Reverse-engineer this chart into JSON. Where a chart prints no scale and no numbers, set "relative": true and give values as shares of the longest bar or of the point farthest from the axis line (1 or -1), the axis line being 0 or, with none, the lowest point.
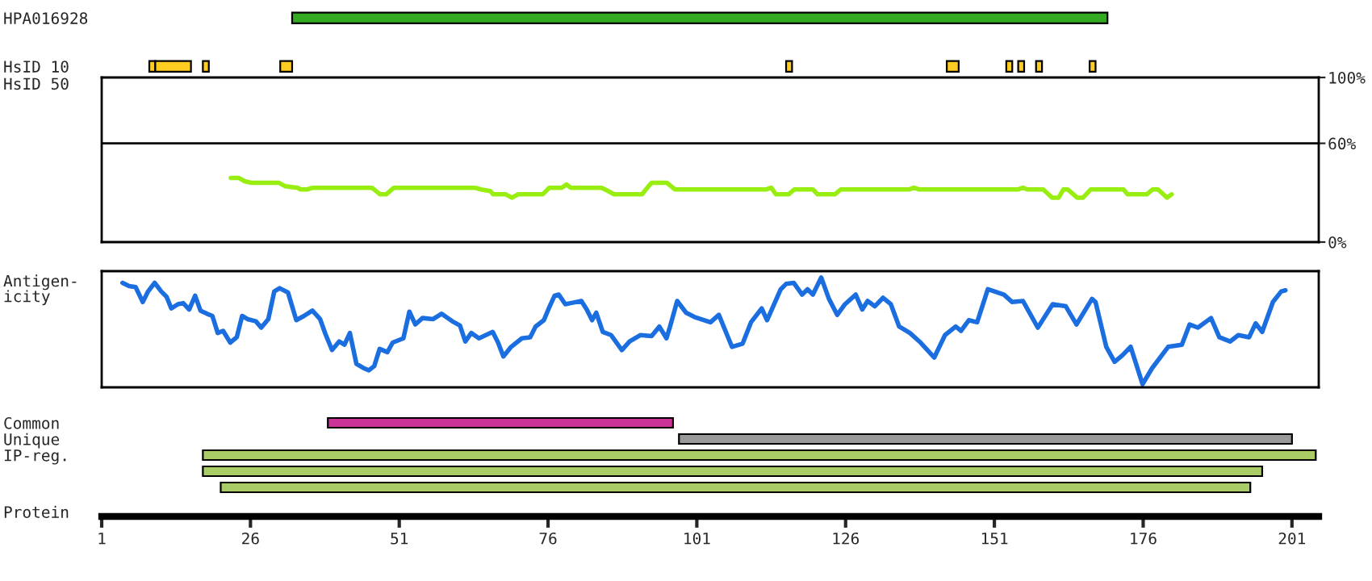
{
  "chart_data": [
    {
      "type": "bar",
      "orientation": "horizontal",
      "categories": [
        "HPA016928",
        "HsID 10"
      ],
      "xlim": [
        1,
        205.5
      ],
      "tick_labels": "y",
      "series": [
        {
          "color": "#33aa22",
          "values": [
            137,
            null
          ],
          "base": [
            33,
            null
          ]
        },
        {
          "color": "#ffcc22",
          "values": [
            null,
            1
          ],
          "base": [
            null,
            9
          ]
        },
        {
          "color": "#ffcc22",
          "values": [
            null,
            6
          ],
          "base": [
            null,
            10
          ]
        },
        {
          "color": "#ffcc22",
          "values": [
            null,
            1
          ],
          "base": [
            null,
            18
          ]
        },
        {
          "color": "#ffcc22",
          "values": [
            null,
            2
          ],
          "base": [
            null,
            31
          ]
        },
        {
          "color": "#ffcc22",
          "values": [
            null,
            1
          ],
          "base": [
            null,
            116
          ]
        },
        {
          "color": "#ffcc22",
          "values": [
            null,
            2
          ],
          "base": [
            null,
            143
          ]
        },
        {
          "color": "#ffcc22",
          "values": [
            null,
            1
          ],
          "base": [
            null,
            153
          ]
        },
        {
          "color": "#ffcc22",
          "values": [
            null,
            1
          ],
          "base": [
            null,
            155
          ]
        },
        {
          "color": "#ffcc22",
          "values": [
            null,
            1
          ],
          "base": [
            null,
            158
          ]
        },
        {
          "color": "#ffcc22",
          "values": [
            null,
            1
          ],
          "base": [
            null,
            167
          ]
        }
      ]
    },
    {
      "type": "line",
      "ylabel": "HsID 50",
      "xlim": [
        1,
        205.5
      ],
      "ylim": [
        0,
        100
      ],
      "yticks": [
        {
          "value": 0,
          "label": "0%"
        },
        {
          "value": 60,
          "label": "60%"
        },
        {
          "value": 100,
          "label": "100%"
        }
      ],
      "tick_labels": "y",
      "ref_lines": [
        {
          "axis": "y",
          "value": 60,
          "color": "#000000"
        }
      ],
      "series": [
        {
          "color": "#99ee11",
          "x": [
            22.7,
            24,
            25,
            26.1,
            30.8,
            31.8,
            33.9,
            34.4,
            35.5,
            36.5,
            46.4,
            47.8,
            48.8,
            50.1,
            63.7,
            64.7,
            66.3,
            66.8,
            68.9,
            69.9,
            71,
            75.1,
            76.2,
            78.3,
            79.1,
            79.8,
            85,
            86.1,
            87.1,
            91.8,
            92.9,
            93.4,
            96,
            97.3,
            112.7,
            113.5,
            114.3,
            116.4,
            117.4,
            120.5,
            121.3,
            124.2,
            125.2,
            136.7,
            137.5,
            138.3,
            155,
            155.8,
            156.5,
            159.2,
            160.7,
            161.8,
            162.6,
            163.3,
            164.9,
            165.9,
            167.2,
            172.7,
            173.4,
            176.6,
            177.6,
            178.5,
            180,
            180.8
          ],
          "values": [
            39,
            39,
            37,
            36,
            36,
            34,
            33,
            32,
            32,
            33,
            33,
            29,
            29,
            33,
            33,
            32,
            31,
            29,
            29,
            27,
            29,
            29,
            33,
            33,
            35,
            33,
            33,
            31,
            29,
            29,
            34,
            36,
            36,
            32,
            32,
            33,
            29,
            29,
            32,
            32,
            29,
            29,
            32,
            32,
            33,
            32,
            32,
            33,
            32,
            32,
            27,
            27,
            32,
            32,
            27,
            27,
            32,
            32,
            29,
            29,
            32,
            32,
            27,
            29
          ]
        }
      ]
    },
    {
      "type": "line",
      "relative": true,
      "ylabel": "Antigen-\nicity",
      "xlim": [
        1,
        205.5
      ],
      "tick_labels": false,
      "series": [
        {
          "color": "#1a6ee0",
          "x": [
            4.5,
            5.6,
            6.7,
            7.9,
            8.8,
            9.9,
            11.0,
            11.9,
            12.7,
            13.8,
            14.7,
            15.7,
            16.7,
            17.6,
            18.7,
            19.6,
            20.5,
            21.4,
            22.6,
            23.7,
            24.6,
            25.5,
            26.9,
            27.8,
            29.0,
            30.0,
            30.9,
            32.3,
            33.7,
            35.0,
            36.4,
            37.7,
            38.6,
            39.7,
            40.9,
            41.8,
            42.7,
            43.8,
            45.0,
            45.9,
            46.8,
            47.7,
            49.0,
            49.9,
            51.7,
            52.7,
            53.7,
            54.9,
            56.7,
            58.1,
            59.9,
            61.2,
            62.1,
            63.1,
            64.4,
            66.7,
            67.6,
            68.5,
            69.8,
            71.6,
            73.0,
            73.9,
            75.3,
            76.2,
            77.1,
            77.8,
            78.9,
            79.8,
            81.6,
            82.5,
            83.4,
            84.1,
            85.2,
            86.6,
            88.4,
            89.7,
            91.5,
            93.4,
            94.7,
            95.9,
            96.5,
            97.7,
            99.2,
            100.6,
            103.3,
            104.7,
            106.9,
            108.7,
            110.1,
            111.9,
            112.8,
            115.1,
            116.0,
            117.3,
            118.7,
            119.6,
            120.5,
            121.9,
            123.2,
            124.6,
            125.9,
            127.7,
            128.8,
            129.7,
            130.9,
            132.3,
            133.6,
            135.0,
            136.8,
            138.6,
            140.9,
            142.7,
            144.5,
            145.4,
            146.7,
            148.1,
            149.9,
            152.6,
            154.0,
            155.8,
            158.3,
            160.8,
            163.0,
            164.8,
            167.4,
            168.0,
            169.8,
            171.2,
            172.5,
            173.9,
            175.9,
            177.5,
            180.2,
            182.5,
            183.8,
            185.2,
            187.4,
            188.8,
            190.6,
            192.0,
            193.8,
            194.9,
            196.0,
            197.8,
            199.2,
            199.9
          ],
          "values": [
            0.95,
            0.92,
            0.91,
            0.77,
            0.87,
            0.95,
            0.87,
            0.82,
            0.71,
            0.75,
            0.76,
            0.7,
            0.83,
            0.69,
            0.66,
            0.64,
            0.48,
            0.5,
            0.39,
            0.44,
            0.64,
            0.61,
            0.59,
            0.53,
            0.61,
            0.87,
            0.9,
            0.86,
            0.6,
            0.64,
            0.69,
            0.61,
            0.47,
            0.32,
            0.4,
            0.37,
            0.48,
            0.19,
            0.15,
            0.13,
            0.17,
            0.33,
            0.3,
            0.39,
            0.43,
            0.68,
            0.56,
            0.62,
            0.61,
            0.66,
            0.59,
            0.55,
            0.4,
            0.48,
            0.43,
            0.49,
            0.39,
            0.26,
            0.35,
            0.43,
            0.44,
            0.54,
            0.6,
            0.72,
            0.83,
            0.84,
            0.75,
            0.76,
            0.78,
            0.7,
            0.6,
            0.67,
            0.49,
            0.46,
            0.32,
            0.4,
            0.46,
            0.45,
            0.54,
            0.43,
            0.54,
            0.78,
            0.67,
            0.63,
            0.58,
            0.65,
            0.35,
            0.38,
            0.58,
            0.71,
            0.6,
            0.89,
            0.94,
            0.95,
            0.84,
            0.89,
            0.84,
            1.0,
            0.8,
            0.65,
            0.75,
            0.84,
            0.7,
            0.78,
            0.73,
            0.81,
            0.75,
            0.54,
            0.48,
            0.39,
            0.25,
            0.46,
            0.54,
            0.5,
            0.6,
            0.58,
            0.89,
            0.84,
            0.77,
            0.78,
            0.53,
            0.75,
            0.73,
            0.56,
            0.8,
            0.77,
            0.35,
            0.21,
            0.27,
            0.35,
            0.0,
            0.15,
            0.35,
            0.37,
            0.56,
            0.53,
            0.62,
            0.44,
            0.4,
            0.46,
            0.44,
            0.57,
            0.49,
            0.77,
            0.87,
            0.88
          ]
        }
      ]
    },
    {
      "type": "bar",
      "orientation": "horizontal",
      "categories": [
        "Common",
        "Unique",
        "IP-reg.",
        null,
        null
      ],
      "xlabel": "Protein",
      "xlim": [
        1,
        205.5
      ],
      "xticks": [
        1,
        26,
        51,
        76,
        101,
        126,
        151,
        176,
        201
      ],
      "series": [
        {
          "color": "#cc3399",
          "values": [
            58,
            null,
            null,
            null,
            null
          ],
          "base": [
            39,
            null,
            null,
            null,
            null
          ]
        },
        {
          "color": "#999999",
          "values": [
            null,
            103,
            null,
            null,
            null
          ],
          "base": [
            null,
            98,
            null,
            null,
            null
          ]
        },
        {
          "color": "#aacc66",
          "values": [
            null,
            null,
            187,
            178,
            173
          ],
          "base": [
            null,
            null,
            18,
            18,
            21
          ]
        }
      ]
    }
  ]
}
